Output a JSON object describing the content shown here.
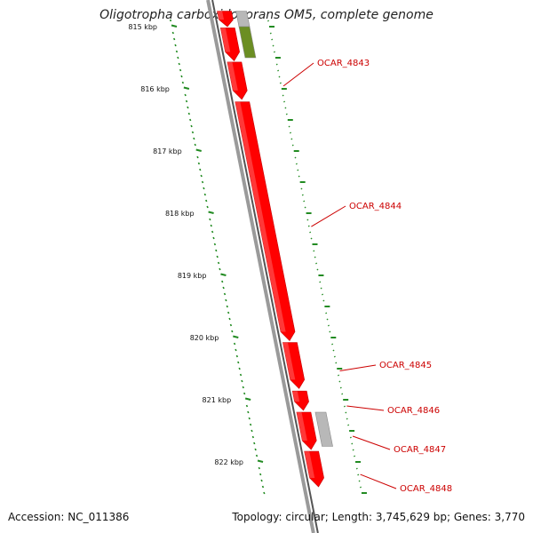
{
  "title": "Oligotropha carboxidovorans OM5, complete genome",
  "footer": {
    "accession": "Accession: NC_011386",
    "summary": "Topology: circular; Length: 3,745,629 bp; Genes: 3,770"
  },
  "colors": {
    "cds": "#ff0000",
    "cds_highlight": "#ff6666",
    "rna": "#6b8e23",
    "other": "#b8b8b8",
    "backbone": "#7a7a7a",
    "tick": "#228b22",
    "label": "#cc0000"
  },
  "ticks": [
    {
      "label": "815 kbp",
      "kbp": 815
    },
    {
      "label": "816 kbp",
      "kbp": 816
    },
    {
      "label": "817 kbp",
      "kbp": 817
    },
    {
      "label": "818 kbp",
      "kbp": 818
    },
    {
      "label": "819 kbp",
      "kbp": 819
    },
    {
      "label": "820 kbp",
      "kbp": 820
    },
    {
      "label": "821 kbp",
      "kbp": 821
    },
    {
      "label": "822 kbp",
      "kbp": 822
    }
  ],
  "features": [
    {
      "name": "",
      "start_kbp": 814.75,
      "end_kbp": 815.0,
      "type": "cds",
      "track": "inner",
      "direction": "forward"
    },
    {
      "name": "",
      "start_kbp": 814.75,
      "end_kbp": 815.0,
      "type": "other",
      "track": "outer",
      "direction": "none"
    },
    {
      "name": "",
      "start_kbp": 815.0,
      "end_kbp": 815.5,
      "type": "rna",
      "track": "outer",
      "direction": "none"
    },
    {
      "name": "",
      "start_kbp": 815.02,
      "end_kbp": 815.55,
      "type": "cds",
      "track": "inner",
      "direction": "forward"
    },
    {
      "name": "OCAR_4843",
      "start_kbp": 815.57,
      "end_kbp": 816.17,
      "type": "cds",
      "track": "inner",
      "direction": "forward"
    },
    {
      "name": "OCAR_4844",
      "start_kbp": 816.21,
      "end_kbp": 820.05,
      "type": "cds",
      "track": "inner",
      "direction": "forward"
    },
    {
      "name": "OCAR_4845",
      "start_kbp": 820.08,
      "end_kbp": 820.82,
      "type": "cds",
      "track": "inner",
      "direction": "forward"
    },
    {
      "name": "OCAR_4846",
      "start_kbp": 820.86,
      "end_kbp": 821.17,
      "type": "cds",
      "track": "inner",
      "direction": "forward"
    },
    {
      "name": "OCAR_4847",
      "start_kbp": 821.2,
      "end_kbp": 821.8,
      "type": "cds",
      "track": "inner",
      "direction": "forward"
    },
    {
      "name": "",
      "start_kbp": 821.2,
      "end_kbp": 821.75,
      "type": "other",
      "track": "outer",
      "direction": "none"
    },
    {
      "name": "OCAR_4848",
      "start_kbp": 821.83,
      "end_kbp": 822.4,
      "type": "cds",
      "track": "inner",
      "direction": "forward"
    }
  ]
}
